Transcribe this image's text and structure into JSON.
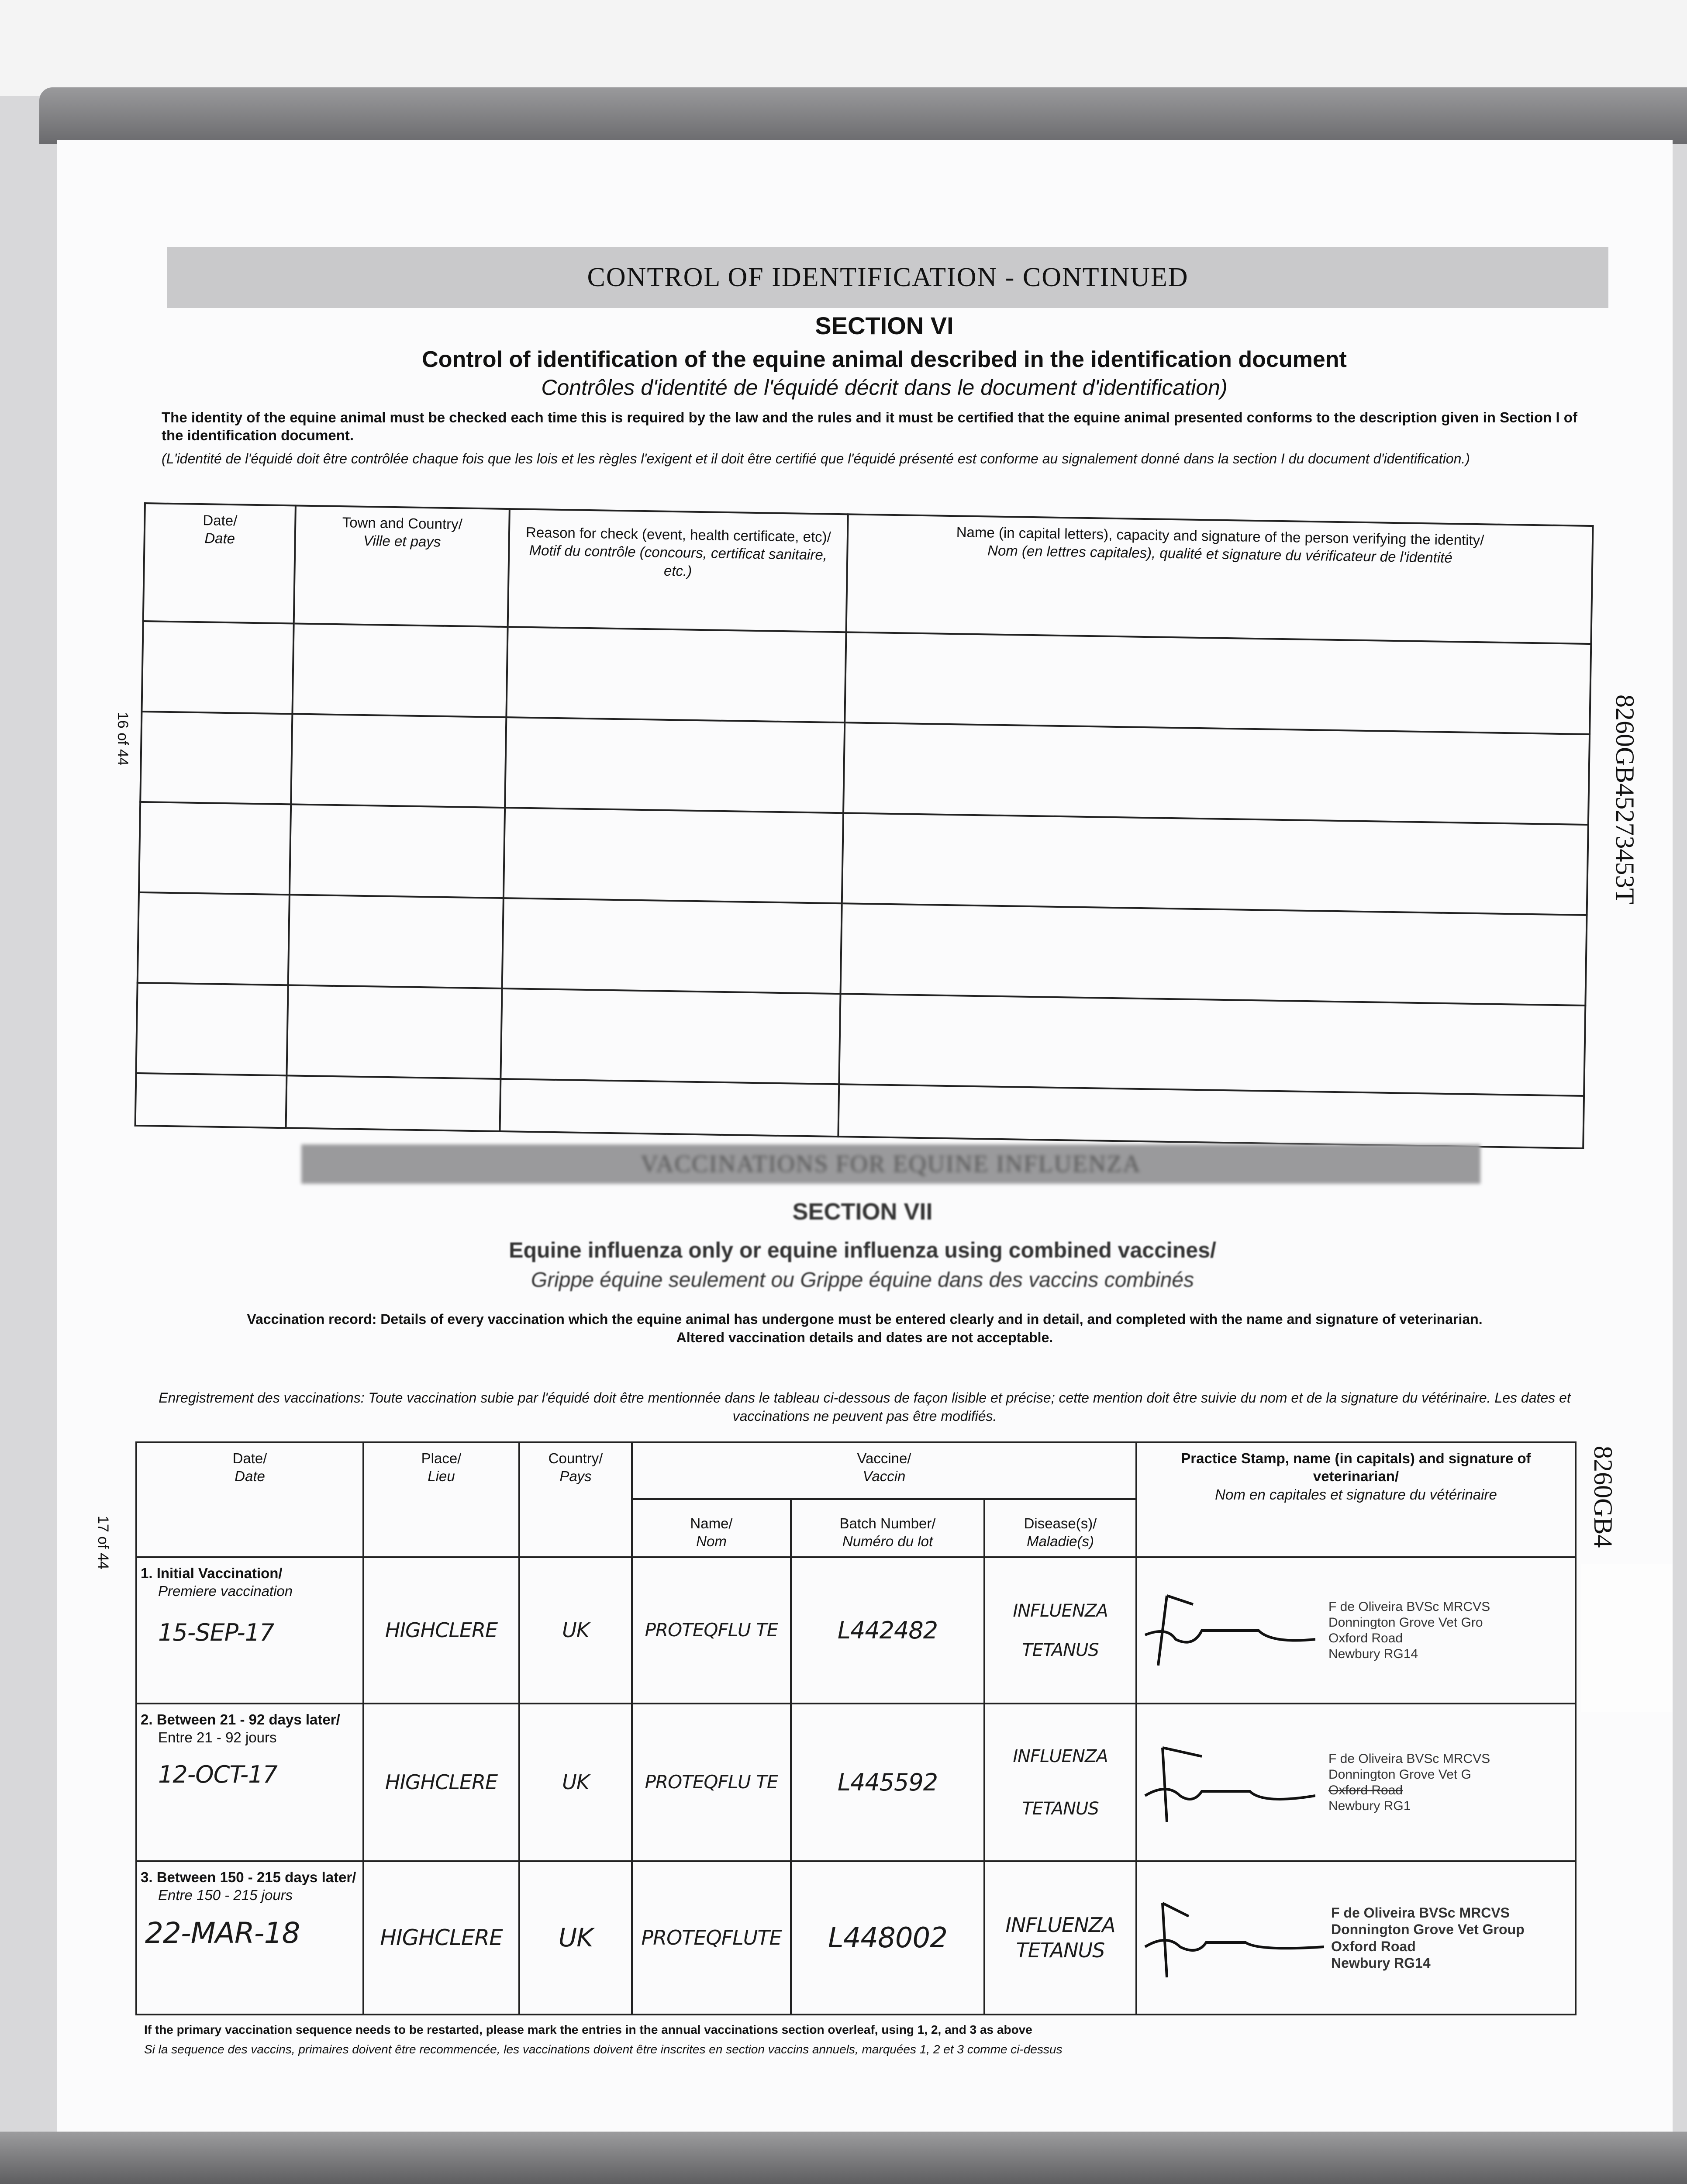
{
  "section6": {
    "band_title": "CONTROL OF IDENTIFICATION - CONTINUED",
    "section": "SECTION VI",
    "title": "Control of identification of the equine animal described in the identification document",
    "title_fr": "Contrôles d'identité de l'équidé décrit dans le document d'identification)",
    "para": "The identity of the equine animal must be checked each time this is required by the law and the rules and it must be certified that the equine animal presented conforms to the description given in Section I of the identification document.",
    "para_fr": "(L'identité de l'équidé doit être contrôlée chaque fois que les lois et les règles l'exigent et il doit être certifié que l'équidé présenté est conforme au signalement donné dans la section I du document d'identification.)",
    "columns": [
      {
        "en": "Date/",
        "fr": "Date"
      },
      {
        "en": "Town and Country/",
        "fr": "Ville et pays"
      },
      {
        "en": "Reason for check (event, health certificate, etc)/",
        "fr": "Motif du contrôle (concours, certificat sanitaire, etc.)"
      },
      {
        "en": "Name (in capital letters), capacity and signature of the person verifying the identity/",
        "fr": "Nom (en lettres capitales), qualité et signature du vérificateur de l'identité"
      }
    ],
    "page_number": "16 of 44",
    "passport_number": "8260GB45273453T"
  },
  "section7": {
    "band_title": "VACCINATIONS FOR EQUINE INFLUENZA",
    "section": "SECTION VII",
    "title": "Equine influenza only or equine influenza using combined vaccines/",
    "title_fr": "Grippe équine seulement ou Grippe équine dans des vaccins combinés",
    "para1": "Vaccination record: Details of every vaccination which the equine animal has undergone must be entered clearly and in detail, and completed with the name and signature of veterinarian.",
    "para2": "Altered vaccination details and dates are not acceptable.",
    "para_fr": "Enregistrement des vaccinations: Toute vaccination subie par l'équidé doit être mentionnée dans le tableau ci-dessous de façon lisible et précise; cette mention doit être suivie du nom et de la signature du vétérinaire. Les dates et vaccinations ne peuvent pas être modifiés.",
    "headers": {
      "date": {
        "en": "Date/",
        "fr": "Date"
      },
      "place": {
        "en": "Place/",
        "fr": "Lieu"
      },
      "country": {
        "en": "Country/",
        "fr": "Pays"
      },
      "vaccine": {
        "en": "Vaccine/",
        "fr": "Vaccin"
      },
      "name": {
        "en": "Name/",
        "fr": "Nom"
      },
      "batch": {
        "en": "Batch Number/",
        "fr": "Numéro du lot"
      },
      "disease": {
        "en": "Disease(s)/",
        "fr": "Maladie(s)"
      },
      "stamp": {
        "en": "Practice Stamp, name (in capitals) and signature of veterinarian/",
        "fr": "Nom en capitales et signature du vétérinaire"
      }
    },
    "rows": [
      {
        "label": "1. Initial Vaccination/",
        "label_fr": "Premiere vaccination",
        "date": "15-SEP-17",
        "place": "HIGHCLERE",
        "country": "UK",
        "name": "PROTEQFLU TE",
        "batch": "L442482",
        "disease1": "INFLUENZA",
        "disease2": "TETANUS",
        "stamp": [
          "F de Oliveira BVSc MRCVS",
          "Donnington Grove Vet Gro",
          "Oxford Road",
          "Newbury RG14"
        ]
      },
      {
        "label": "2. Between 21 - 92 days later/",
        "label_fr": "Entre 21 - 92 jours",
        "date": "12-OCT-17",
        "place": "HIGHCLERE",
        "country": "UK",
        "name": "PROTEQFLU TE",
        "batch": "L445592",
        "disease1": "INFLUENZA",
        "disease2": "TETANUS",
        "stamp": [
          "F de Oliveira BVSc MRCVS",
          "Donnington Grove Vet G",
          "Oxford Road",
          "Newbury RG1"
        ]
      },
      {
        "label": "3. Between 150 - 215 days later/",
        "label_fr": "Entre 150 - 215 jours",
        "date": "22-MAR-18",
        "place": "HIGHCLERE",
        "country": "UK",
        "name": "PROTEQFLUTE",
        "batch": "L448002",
        "disease1": "INFLUENZA",
        "disease2": "TETANUS",
        "stamp": [
          "F de Oliveira BVSc MRCVS",
          "Donnington Grove Vet Group",
          "Oxford Road",
          "Newbury RG14"
        ]
      }
    ],
    "footnote": "If the primary vaccination sequence needs to be restarted, please mark the entries in the annual vaccinations section overleaf, using 1, 2, and 3 as above",
    "footnote_fr": "Si la sequence des vaccins, primaires doivent être recommencée, les vaccinations doivent être inscrites en section vaccins annuels, marquées 1, 2 et 3 comme ci-dessus",
    "page_number": "17 of 44",
    "passport_number": "8260GB4"
  }
}
